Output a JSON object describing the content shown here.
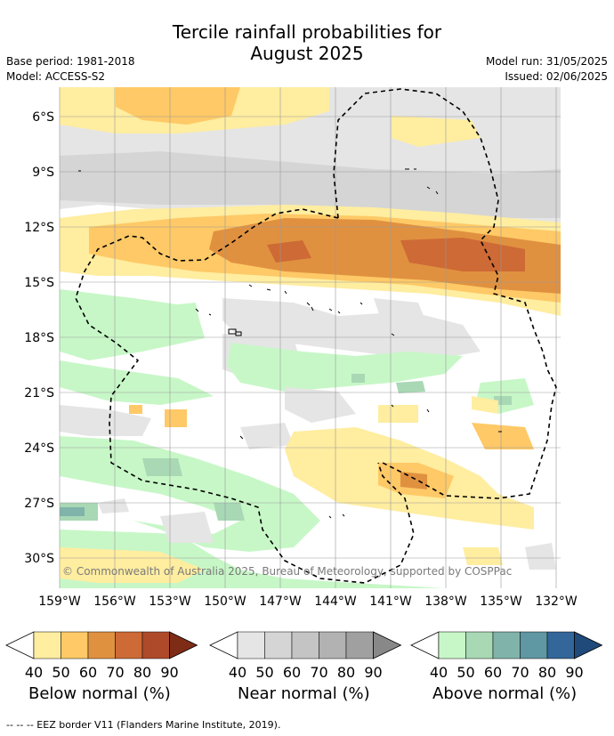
{
  "title_line1": "Tercile rainfall probabilities for",
  "title_line2": "August 2025",
  "meta": {
    "base_period": "Base period: 1981-2018",
    "model": "Model: ACCESS-S2",
    "model_run": "Model run: 31/05/2025",
    "issued": "Issued: 02/06/2025"
  },
  "map": {
    "lat_labels": [
      "6°S",
      "9°S",
      "12°S",
      "15°S",
      "18°S",
      "21°S",
      "24°S",
      "27°S",
      "30°S"
    ],
    "lon_labels": [
      "159°W",
      "156°W",
      "153°W",
      "150°W",
      "147°W",
      "144°W",
      "141°W",
      "138°W",
      "135°W",
      "132°W"
    ],
    "copyright": "© Commonwealth of Australia 2025, Bureau of Meteorology, supported by COSPPac"
  },
  "legends": [
    {
      "title": "Below normal (%)",
      "ticks": [
        "40",
        "50",
        "60",
        "70",
        "80",
        "90"
      ],
      "colors": [
        "#ffeda0",
        "#fec966",
        "#e09140",
        "#cd6a35",
        "#ae4a2a",
        "#7f2c17"
      ]
    },
    {
      "title": "Near normal (%)",
      "ticks": [
        "40",
        "50",
        "60",
        "70",
        "80",
        "90"
      ],
      "colors": [
        "#e5e5e5",
        "#d5d5d5",
        "#c4c4c4",
        "#b2b2b2",
        "#a0a0a0",
        "#888888"
      ]
    },
    {
      "title": "Above normal (%)",
      "ticks": [
        "40",
        "50",
        "60",
        "70",
        "80",
        "90"
      ],
      "colors": [
        "#c7f7c7",
        "#a8d8b4",
        "#80b4aa",
        "#5f97a3",
        "#336699",
        "#1f4a7a"
      ]
    }
  ],
  "footnote": "--  --  -- EEZ border V11 (Flanders Marine Institute, 2019)."
}
